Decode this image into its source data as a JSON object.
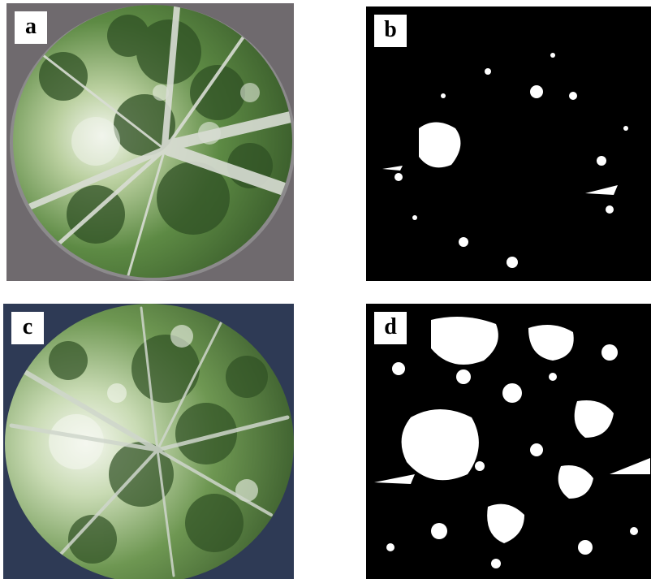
{
  "panels": [
    {
      "id": "a",
      "label": "a",
      "style": "color hemispherical canopy photo (grey surround)"
    },
    {
      "id": "b",
      "label": "b",
      "style": "binarized canopy image"
    },
    {
      "id": "c",
      "label": "c",
      "style": "color hemispherical canopy photo (blue surround)"
    },
    {
      "id": "d",
      "label": "d",
      "style": "binarized canopy image"
    }
  ],
  "colors": {
    "surround_a": "#6f6a6e",
    "surround_c": "#2e3a55",
    "canopy_green": "#4f7a3a",
    "canopy_dark": "#2c4a22",
    "sky_light": "#eef3ea",
    "trunk": "#cfd3cc",
    "binary_black": "#000000",
    "binary_white": "#ffffff"
  }
}
